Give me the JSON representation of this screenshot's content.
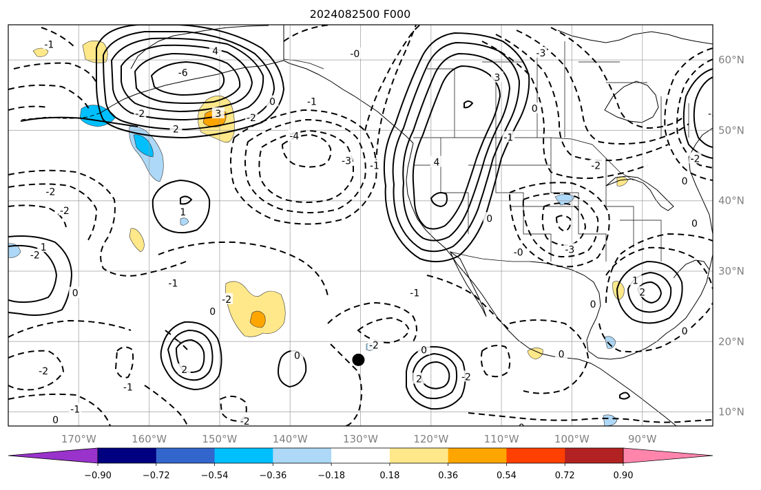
{
  "title": "2024082500 F000",
  "map": {
    "lon_range": [
      -180,
      -80
    ],
    "lat_range": [
      8,
      65
    ],
    "grid": true,
    "grid_lons": [
      -170,
      -160,
      -150,
      -140,
      -130,
      -120,
      -110,
      -100,
      -90
    ],
    "grid_lats": [
      10,
      20,
      30,
      40,
      50,
      60
    ]
  },
  "lon_labels": [
    "170°W",
    "160°W",
    "150°W",
    "140°W",
    "130°W",
    "120°W",
    "110°W",
    "100°W",
    "90°W"
  ],
  "lat_labels": [
    "10°N",
    "20°N",
    "30°N",
    "40°N",
    "50°N",
    "60°N"
  ],
  "colorbar": {
    "orientation": "horizontal",
    "extend": "both",
    "boundaries": [
      -1.08,
      -0.9,
      -0.72,
      -0.54,
      -0.36,
      -0.18,
      0.18,
      0.36,
      0.54,
      0.72,
      0.9,
      1.08
    ],
    "colors": [
      "#9933cc",
      "#000080",
      "#3366cc",
      "#00bfff",
      "#add8f7",
      "#ffffff",
      "#ffe88a",
      "#ffa500",
      "#ff4000",
      "#b22222",
      "#ff85ad"
    ],
    "tick_labels": [
      "−0.90",
      "−0.72",
      "−0.54",
      "−0.36",
      "−0.18",
      "0.18",
      "0.36",
      "0.54",
      "0.72",
      "0.90"
    ]
  },
  "marker": {
    "lon": -130.3,
    "lat": 17.4,
    "color": "#000000"
  },
  "contour_labels": [
    {
      "text": "-1",
      "lon": -174.2,
      "lat": 62.2
    },
    {
      "text": "-0",
      "lon": -130.8,
      "lat": 60.9
    },
    {
      "text": "-6",
      "lon": -155.2,
      "lat": 58.2
    },
    {
      "text": "4",
      "lon": -150.6,
      "lat": 61.3
    },
    {
      "text": "3",
      "lon": -150.2,
      "lat": 52.4
    },
    {
      "text": "2",
      "lon": -156.2,
      "lat": 50.2
    },
    {
      "text": "-2",
      "lon": -161.3,
      "lat": 52.4
    },
    {
      "text": "-2",
      "lon": -145.5,
      "lat": 51.8
    },
    {
      "text": "-4",
      "lon": -139.4,
      "lat": 49.2
    },
    {
      "text": "-3",
      "lon": -132.0,
      "lat": 45.7
    },
    {
      "text": "-1",
      "lon": -136.9,
      "lat": 54.1
    },
    {
      "text": "0",
      "lon": -142.5,
      "lat": 54.1
    },
    {
      "text": "-1",
      "lon": -128.0,
      "lat": 45.0
    },
    {
      "text": "-2",
      "lon": -174.0,
      "lat": 41.3
    },
    {
      "text": "-2",
      "lon": -172.0,
      "lat": 38.6
    },
    {
      "text": "1",
      "lon": -155.2,
      "lat": 38.4
    },
    {
      "text": "1",
      "lon": -175.0,
      "lat": 33.4
    },
    {
      "text": "-2",
      "lon": -176.2,
      "lat": 32.3
    },
    {
      "text": "0",
      "lon": -170.5,
      "lat": 26.9
    },
    {
      "text": "-1",
      "lon": -156.6,
      "lat": 28.3
    },
    {
      "text": "0",
      "lon": -151.0,
      "lat": 24.3
    },
    {
      "text": "-2",
      "lon": -149.0,
      "lat": 26.0
    },
    {
      "text": "2",
      "lon": -155.0,
      "lat": 16.0
    },
    {
      "text": "-1",
      "lon": -163.0,
      "lat": 13.5
    },
    {
      "text": "-2",
      "lon": -175.0,
      "lat": 15.8
    },
    {
      "text": "-1",
      "lon": -170.5,
      "lat": 10.4
    },
    {
      "text": "0",
      "lon": -173.3,
      "lat": 8.9
    },
    {
      "text": "-2",
      "lon": -146.4,
      "lat": 8.7
    },
    {
      "text": "0",
      "lon": -139.0,
      "lat": 18.0
    },
    {
      "text": "-2",
      "lon": -128.1,
      "lat": 19.5
    },
    {
      "text": "0",
      "lon": -121.0,
      "lat": 18.8
    },
    {
      "text": "2",
      "lon": -121.7,
      "lat": 14.7
    },
    {
      "text": "-2",
      "lon": -115.0,
      "lat": 15.0
    },
    {
      "text": "-0",
      "lon": -107.4,
      "lat": 7.8
    },
    {
      "text": "-1",
      "lon": -122.3,
      "lat": 26.9
    },
    {
      "text": "0",
      "lon": -111.7,
      "lat": 37.5
    },
    {
      "text": "4",
      "lon": -119.2,
      "lat": 45.5
    },
    {
      "text": "3",
      "lon": -110.6,
      "lat": 57.5
    },
    {
      "text": "-1",
      "lon": -109.0,
      "lat": 49.0
    },
    {
      "text": "0",
      "lon": -105.3,
      "lat": 53.1
    },
    {
      "text": "-3",
      "lon": -104.4,
      "lat": 61.0
    },
    {
      "text": "-2",
      "lon": -96.6,
      "lat": 45.0
    },
    {
      "text": "-3",
      "lon": -100.3,
      "lat": 33.1
    },
    {
      "text": "-0",
      "lon": -107.6,
      "lat": 32.7
    },
    {
      "text": "0",
      "lon": -97.0,
      "lat": 25.3
    },
    {
      "text": "1",
      "lon": -91.0,
      "lat": 28.7
    },
    {
      "text": "0",
      "lon": -101.5,
      "lat": 18.2
    },
    {
      "text": "0",
      "lon": -84.0,
      "lat": 21.5
    },
    {
      "text": "0",
      "lon": -82.6,
      "lat": 36.8
    },
    {
      "text": "2",
      "lon": -90.0,
      "lat": 27.0
    },
    {
      "text": "-3",
      "lon": -80.0,
      "lat": 52.4
    },
    {
      "text": "-2",
      "lon": -82.5,
      "lat": 46.0
    },
    {
      "text": "0",
      "lon": -84.0,
      "lat": 42.8
    }
  ]
}
